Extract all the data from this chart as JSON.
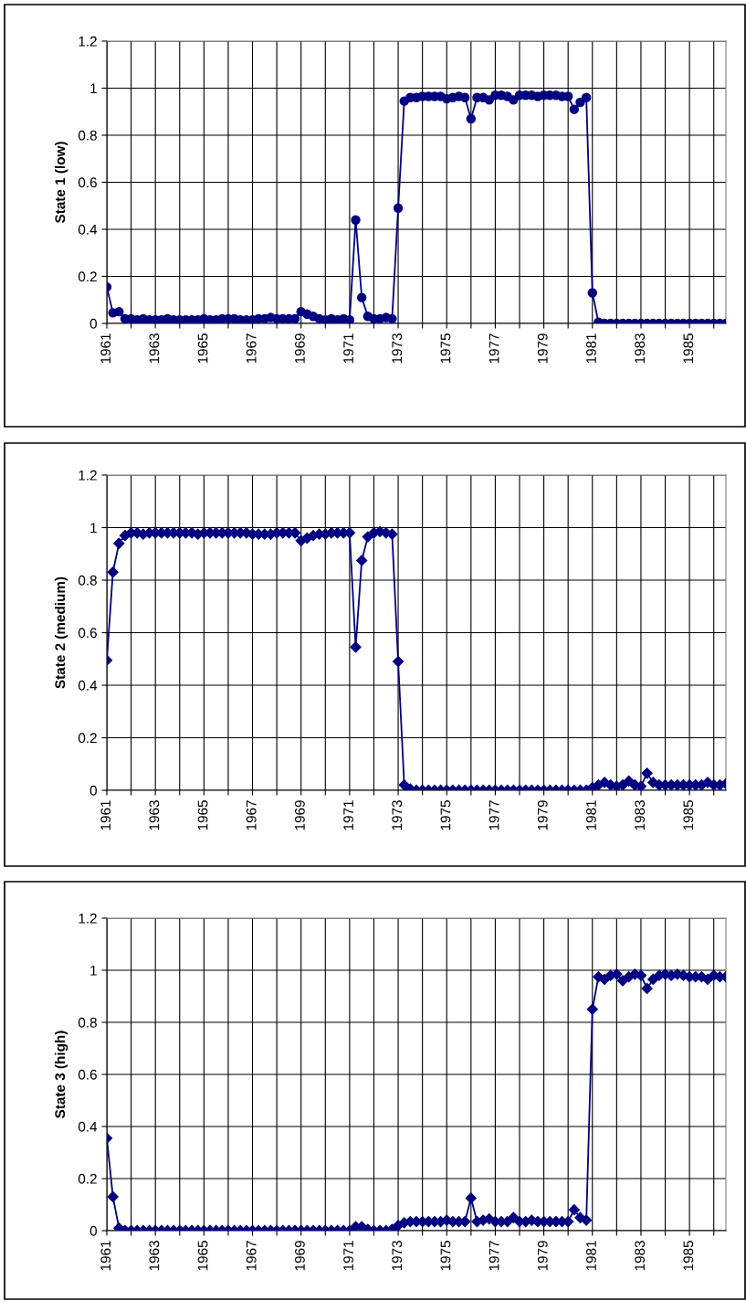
{
  "chart_data": [
    {
      "type": "line",
      "ylabel": "State 1 (low)",
      "marker": "circle",
      "grid": true,
      "xlim": [
        1961,
        1986.5
      ],
      "ylim": [
        0,
        1.2
      ],
      "yticks": [
        0,
        0.2,
        0.4,
        0.6,
        0.8,
        1,
        1.2
      ],
      "xticks": [
        1961,
        {
          "value": 1962,
          "label": null
        },
        1963,
        {
          "value": 1964,
          "label": null
        },
        1965,
        {
          "value": 1966,
          "label": null
        },
        1967,
        {
          "value": 1968,
          "label": null
        },
        1969,
        {
          "value": 1970,
          "label": null
        },
        1971,
        {
          "value": 1972,
          "label": null
        },
        1973,
        {
          "value": 1974,
          "label": null
        },
        1975,
        {
          "value": 1976,
          "label": null
        },
        1977,
        {
          "value": 1978,
          "label": null
        },
        1979,
        {
          "value": 1980,
          "label": null
        },
        1981,
        {
          "value": 1982,
          "label": null
        },
        1983,
        {
          "value": 1984,
          "label": null
        },
        1985,
        {
          "value": 1986,
          "label": null
        }
      ],
      "x": [
        1961,
        1961.25,
        1961.5,
        1961.75,
        1962,
        1962.25,
        1962.5,
        1962.75,
        1963,
        1963.25,
        1963.5,
        1963.75,
        1964,
        1964.25,
        1964.5,
        1964.75,
        1965,
        1965.25,
        1965.5,
        1965.75,
        1966,
        1966.25,
        1966.5,
        1966.75,
        1967,
        1967.25,
        1967.5,
        1967.75,
        1968,
        1968.25,
        1968.5,
        1968.75,
        1969,
        1969.25,
        1969.5,
        1969.75,
        1970,
        1970.25,
        1970.5,
        1970.75,
        1971,
        1971.25,
        1971.5,
        1971.75,
        1972,
        1972.25,
        1972.5,
        1972.75,
        1973,
        1973.25,
        1973.5,
        1973.75,
        1974,
        1974.25,
        1974.5,
        1974.75,
        1975,
        1975.25,
        1975.5,
        1975.75,
        1976,
        1976.25,
        1976.5,
        1976.75,
        1977,
        1977.25,
        1977.5,
        1977.75,
        1978,
        1978.25,
        1978.5,
        1978.75,
        1979,
        1979.25,
        1979.5,
        1979.75,
        1980,
        1980.25,
        1980.5,
        1980.75,
        1981,
        1981.25,
        1981.5,
        1981.75,
        1982,
        1982.25,
        1982.5,
        1982.75,
        1983,
        1983.25,
        1983.5,
        1983.75,
        1984,
        1984.25,
        1984.5,
        1984.75,
        1985,
        1985.25,
        1985.5,
        1985.75,
        1986,
        1986.25,
        1986.5
      ],
      "series": [
        {
          "color": "#000080",
          "values": [
            0.155,
            0.045,
            0.05,
            0.02,
            0.02,
            0.015,
            0.02,
            0.015,
            0.015,
            0.015,
            0.02,
            0.015,
            0.015,
            0.015,
            0.015,
            0.015,
            0.02,
            0.015,
            0.015,
            0.02,
            0.02,
            0.02,
            0.015,
            0.015,
            0.015,
            0.02,
            0.02,
            0.025,
            0.02,
            0.02,
            0.02,
            0.02,
            0.05,
            0.04,
            0.03,
            0.02,
            0.015,
            0.02,
            0.015,
            0.02,
            0.015,
            0.44,
            0.11,
            0.03,
            0.02,
            0.02,
            0.025,
            0.02,
            0.49,
            0.945,
            0.96,
            0.96,
            0.965,
            0.965,
            0.965,
            0.965,
            0.955,
            0.96,
            0.965,
            0.96,
            0.87,
            0.96,
            0.96,
            0.95,
            0.97,
            0.97,
            0.965,
            0.95,
            0.97,
            0.97,
            0.97,
            0.965,
            0.97,
            0.97,
            0.97,
            0.965,
            0.965,
            0.91,
            0.94,
            0.96,
            0.13,
            0.005,
            0,
            0,
            0,
            0,
            0,
            0,
            0,
            0,
            0,
            0,
            0,
            0,
            0,
            0,
            0,
            0,
            0,
            0,
            0,
            0,
            0
          ]
        }
      ]
    },
    {
      "type": "line",
      "ylabel": "State 2 (medium)",
      "marker": "diamond",
      "grid": true,
      "xlim": [
        1961,
        1986.5
      ],
      "ylim": [
        0,
        1.2
      ],
      "yticks": [
        0,
        0.2,
        0.4,
        0.6,
        0.8,
        1,
        1.2
      ],
      "xticks": [
        1961,
        {
          "value": 1962,
          "label": null
        },
        1963,
        {
          "value": 1964,
          "label": null
        },
        1965,
        {
          "value": 1966,
          "label": null
        },
        1967,
        {
          "value": 1968,
          "label": null
        },
        1969,
        {
          "value": 1970,
          "label": null
        },
        1971,
        {
          "value": 1972,
          "label": null
        },
        1973,
        {
          "value": 1974,
          "label": null
        },
        1975,
        {
          "value": 1976,
          "label": null
        },
        1977,
        {
          "value": 1978,
          "label": null
        },
        1979,
        {
          "value": 1980,
          "label": null
        },
        1981,
        {
          "value": 1982,
          "label": null
        },
        1983,
        {
          "value": 1984,
          "label": null
        },
        1985,
        {
          "value": 1986,
          "label": null
        }
      ],
      "x": [
        1961,
        1961.25,
        1961.5,
        1961.75,
        1962,
        1962.25,
        1962.5,
        1962.75,
        1963,
        1963.25,
        1963.5,
        1963.75,
        1964,
        1964.25,
        1964.5,
        1964.75,
        1965,
        1965.25,
        1965.5,
        1965.75,
        1966,
        1966.25,
        1966.5,
        1966.75,
        1967,
        1967.25,
        1967.5,
        1967.75,
        1968,
        1968.25,
        1968.5,
        1968.75,
        1969,
        1969.25,
        1969.5,
        1969.75,
        1970,
        1970.25,
        1970.5,
        1970.75,
        1971,
        1971.25,
        1971.5,
        1971.75,
        1972,
        1972.25,
        1972.5,
        1972.75,
        1973,
        1973.25,
        1973.5,
        1973.75,
        1974,
        1974.25,
        1974.5,
        1974.75,
        1975,
        1975.25,
        1975.5,
        1975.75,
        1976,
        1976.25,
        1976.5,
        1976.75,
        1977,
        1977.25,
        1977.5,
        1977.75,
        1978,
        1978.25,
        1978.5,
        1978.75,
        1979,
        1979.25,
        1979.5,
        1979.75,
        1980,
        1980.25,
        1980.5,
        1980.75,
        1981,
        1981.25,
        1981.5,
        1981.75,
        1982,
        1982.25,
        1982.5,
        1982.75,
        1983,
        1983.25,
        1983.5,
        1983.75,
        1984,
        1984.25,
        1984.5,
        1984.75,
        1985,
        1985.25,
        1985.5,
        1985.75,
        1986,
        1986.25,
        1986.5
      ],
      "series": [
        {
          "color": "#000080",
          "values": [
            0.495,
            0.83,
            0.94,
            0.97,
            0.98,
            0.98,
            0.975,
            0.98,
            0.98,
            0.98,
            0.98,
            0.98,
            0.98,
            0.98,
            0.98,
            0.975,
            0.98,
            0.98,
            0.98,
            0.98,
            0.98,
            0.98,
            0.98,
            0.98,
            0.975,
            0.975,
            0.975,
            0.975,
            0.98,
            0.98,
            0.98,
            0.98,
            0.95,
            0.96,
            0.97,
            0.975,
            0.975,
            0.98,
            0.98,
            0.98,
            0.98,
            0.545,
            0.875,
            0.965,
            0.98,
            0.985,
            0.98,
            0.975,
            0.49,
            0.02,
            0.005,
            0,
            0,
            0,
            0,
            0,
            0,
            0,
            0,
            0,
            0,
            0,
            0,
            0,
            0,
            0,
            0,
            0,
            0,
            0,
            0,
            0,
            0,
            0,
            0,
            0,
            0,
            0,
            0,
            0,
            0.01,
            0.02,
            0.03,
            0.02,
            0.015,
            0.02,
            0.035,
            0.02,
            0.015,
            0.065,
            0.03,
            0.02,
            0.02,
            0.02,
            0.02,
            0.02,
            0.02,
            0.02,
            0.02,
            0.03,
            0.02,
            0.02,
            0.025
          ]
        }
      ]
    },
    {
      "type": "line",
      "ylabel": "State 3 (high)",
      "marker": "diamond",
      "grid": true,
      "xlim": [
        1961,
        1986.5
      ],
      "ylim": [
        0,
        1.2
      ],
      "yticks": [
        0,
        0.2,
        0.4,
        0.6,
        0.8,
        1,
        1.2
      ],
      "xticks": [
        1961,
        {
          "value": 1962,
          "label": null
        },
        1963,
        {
          "value": 1964,
          "label": null
        },
        1965,
        {
          "value": 1966,
          "label": null
        },
        1967,
        {
          "value": 1968,
          "label": null
        },
        1969,
        {
          "value": 1970,
          "label": null
        },
        1971,
        {
          "value": 1972,
          "label": null
        },
        1973,
        {
          "value": 1974,
          "label": null
        },
        1975,
        {
          "value": 1976,
          "label": null
        },
        1977,
        {
          "value": 1978,
          "label": null
        },
        1979,
        {
          "value": 1980,
          "label": null
        },
        1981,
        {
          "value": 1982,
          "label": null
        },
        1983,
        {
          "value": 1984,
          "label": null
        },
        1985,
        {
          "value": 1986,
          "label": null
        }
      ],
      "x": [
        1961,
        1961.25,
        1961.5,
        1961.75,
        1962,
        1962.25,
        1962.5,
        1962.75,
        1963,
        1963.25,
        1963.5,
        1963.75,
        1964,
        1964.25,
        1964.5,
        1964.75,
        1965,
        1965.25,
        1965.5,
        1965.75,
        1966,
        1966.25,
        1966.5,
        1966.75,
        1967,
        1967.25,
        1967.5,
        1967.75,
        1968,
        1968.25,
        1968.5,
        1968.75,
        1969,
        1969.25,
        1969.5,
        1969.75,
        1970,
        1970.25,
        1970.5,
        1970.75,
        1971,
        1971.25,
        1971.5,
        1971.75,
        1972,
        1972.25,
        1972.5,
        1972.75,
        1973,
        1973.25,
        1973.5,
        1973.75,
        1974,
        1974.25,
        1974.5,
        1974.75,
        1975,
        1975.25,
        1975.5,
        1975.75,
        1976,
        1976.25,
        1976.5,
        1976.75,
        1977,
        1977.25,
        1977.5,
        1977.75,
        1978,
        1978.25,
        1978.5,
        1978.75,
        1979,
        1979.25,
        1979.5,
        1979.75,
        1980,
        1980.25,
        1980.5,
        1980.75,
        1981,
        1981.25,
        1981.5,
        1981.75,
        1982,
        1982.25,
        1982.5,
        1982.75,
        1983,
        1983.25,
        1983.5,
        1983.75,
        1984,
        1984.25,
        1984.5,
        1984.75,
        1985,
        1985.25,
        1985.5,
        1985.75,
        1986,
        1986.25,
        1986.5
      ],
      "series": [
        {
          "color": "#000080",
          "values": [
            0.355,
            0.13,
            0.01,
            0,
            0,
            0,
            0,
            0,
            0,
            0,
            0,
            0,
            0,
            0,
            0,
            0,
            0,
            0,
            0,
            0,
            0,
            0,
            0,
            0,
            0,
            0,
            0,
            0,
            0,
            0,
            0,
            0,
            0,
            0,
            0,
            0,
            0,
            0,
            0,
            0,
            0,
            0.015,
            0.015,
            0.005,
            0,
            0,
            0,
            0.005,
            0.02,
            0.03,
            0.035,
            0.035,
            0.035,
            0.035,
            0.035,
            0.035,
            0.04,
            0.035,
            0.035,
            0.035,
            0.125,
            0.035,
            0.04,
            0.045,
            0.035,
            0.035,
            0.035,
            0.05,
            0.035,
            0.035,
            0.04,
            0.035,
            0.035,
            0.035,
            0.035,
            0.035,
            0.035,
            0.08,
            0.05,
            0.04,
            0.85,
            0.975,
            0.965,
            0.98,
            0.985,
            0.96,
            0.975,
            0.985,
            0.98,
            0.93,
            0.965,
            0.98,
            0.985,
            0.98,
            0.985,
            0.98,
            0.975,
            0.975,
            0.975,
            0.965,
            0.98,
            0.975,
            0.975
          ]
        }
      ]
    }
  ]
}
